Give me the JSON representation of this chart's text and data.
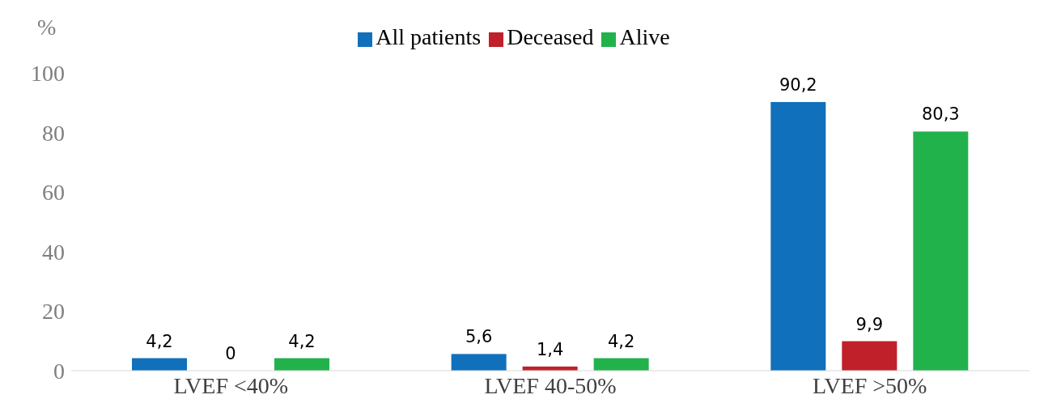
{
  "chart_data": {
    "type": "bar",
    "ylabel": "%",
    "categories": [
      "LVEF <40%",
      "LVEF 40-50%",
      "LVEF >50%"
    ],
    "series": [
      {
        "name": "All patients",
        "color": "#1170bb",
        "values": [
          4.2,
          5.6,
          90.2
        ],
        "value_labels": [
          "4,2",
          "5,6",
          "90,2"
        ]
      },
      {
        "name": "Deceased",
        "color": "#c0202a",
        "values": [
          0,
          1.4,
          9.9
        ],
        "value_labels": [
          "0",
          "1,4",
          "9,9"
        ]
      },
      {
        "name": "Alive",
        "color": "#22b24c",
        "values": [
          4.2,
          4.2,
          80.3
        ],
        "value_labels": [
          "4,2",
          "4,2",
          "80,3"
        ]
      }
    ],
    "ylim": [
      0,
      100
    ],
    "yticks": [
      0,
      20,
      40,
      60,
      80,
      100
    ],
    "grid": false,
    "legend": "top"
  }
}
